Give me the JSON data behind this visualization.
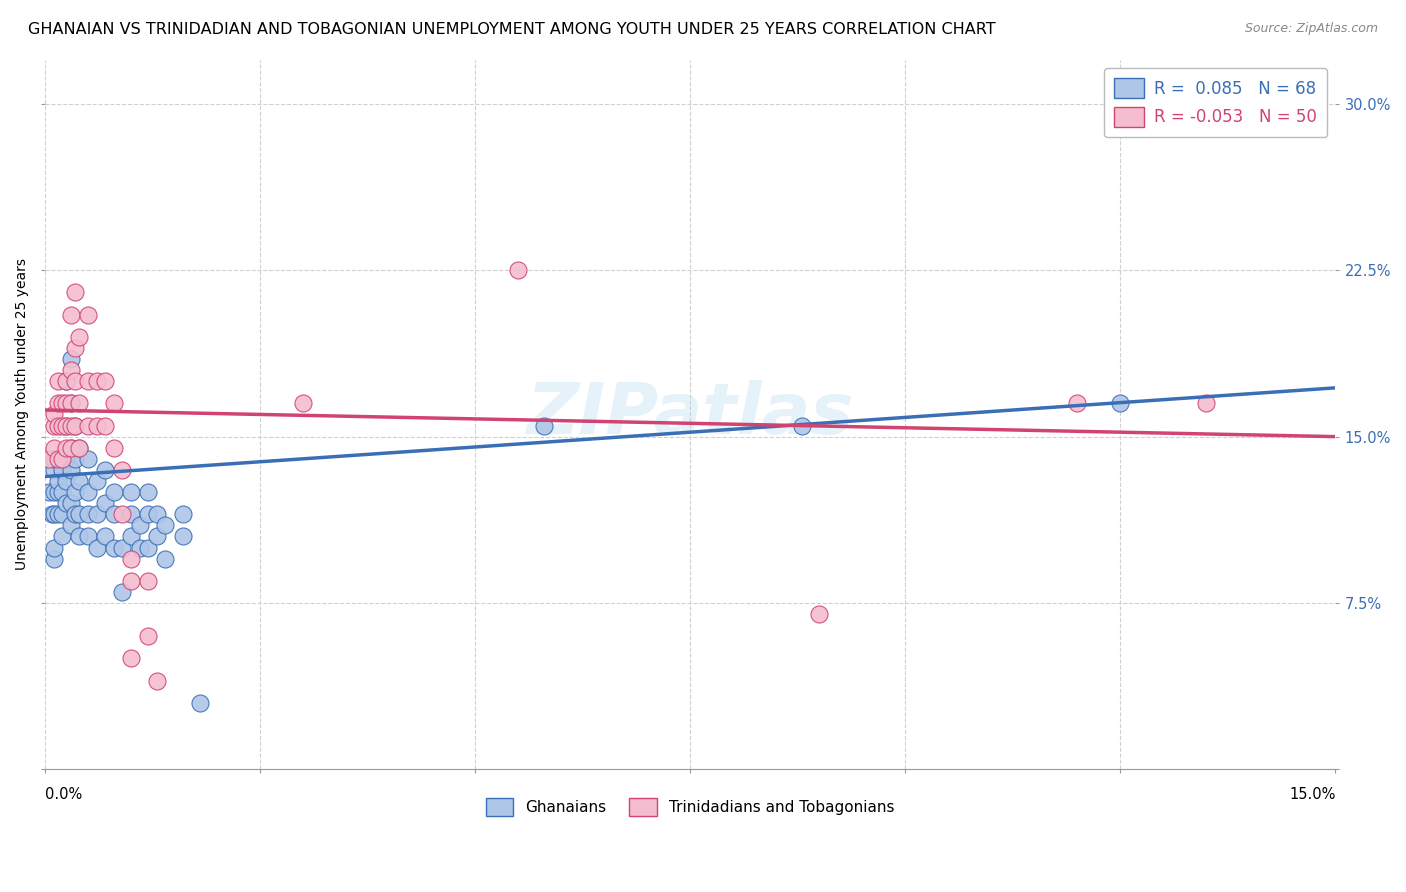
{
  "title": "GHANAIAN VS TRINIDADIAN AND TOBAGONIAN UNEMPLOYMENT AMONG YOUTH UNDER 25 YEARS CORRELATION CHART",
  "source": "Source: ZipAtlas.com",
  "ylabel": "Unemployment Among Youth under 25 years",
  "ytick_labels_right": [
    "",
    "7.5%",
    "15.0%",
    "22.5%",
    "30.0%"
  ],
  "yticks": [
    0.0,
    0.075,
    0.15,
    0.225,
    0.3
  ],
  "xlim": [
    0.0,
    0.15
  ],
  "ylim": [
    0.0,
    0.32
  ],
  "blue_R": 0.085,
  "blue_N": 68,
  "pink_R": -0.053,
  "pink_N": 50,
  "blue_color": "#aec6e8",
  "pink_color": "#f4bdd0",
  "blue_line_color": "#3b6fb5",
  "pink_line_color": "#d14472",
  "blue_trend_x": [
    0.0,
    0.15
  ],
  "blue_trend_y": [
    0.132,
    0.172
  ],
  "pink_trend_x": [
    0.0,
    0.15
  ],
  "pink_trend_y": [
    0.162,
    0.15
  ],
  "blue_scatter": [
    [
      0.0005,
      0.125
    ],
    [
      0.0008,
      0.115
    ],
    [
      0.001,
      0.095
    ],
    [
      0.001,
      0.1
    ],
    [
      0.001,
      0.115
    ],
    [
      0.001,
      0.125
    ],
    [
      0.001,
      0.135
    ],
    [
      0.001,
      0.14
    ],
    [
      0.0015,
      0.115
    ],
    [
      0.0015,
      0.125
    ],
    [
      0.0015,
      0.13
    ],
    [
      0.002,
      0.105
    ],
    [
      0.002,
      0.115
    ],
    [
      0.002,
      0.125
    ],
    [
      0.002,
      0.135
    ],
    [
      0.0025,
      0.12
    ],
    [
      0.0025,
      0.13
    ],
    [
      0.0025,
      0.14
    ],
    [
      0.0025,
      0.155
    ],
    [
      0.0025,
      0.175
    ],
    [
      0.003,
      0.11
    ],
    [
      0.003,
      0.12
    ],
    [
      0.003,
      0.135
    ],
    [
      0.003,
      0.145
    ],
    [
      0.003,
      0.165
    ],
    [
      0.003,
      0.185
    ],
    [
      0.0035,
      0.115
    ],
    [
      0.0035,
      0.125
    ],
    [
      0.0035,
      0.14
    ],
    [
      0.0035,
      0.155
    ],
    [
      0.004,
      0.105
    ],
    [
      0.004,
      0.115
    ],
    [
      0.004,
      0.13
    ],
    [
      0.004,
      0.145
    ],
    [
      0.005,
      0.105
    ],
    [
      0.005,
      0.115
    ],
    [
      0.005,
      0.125
    ],
    [
      0.005,
      0.14
    ],
    [
      0.006,
      0.1
    ],
    [
      0.006,
      0.115
    ],
    [
      0.006,
      0.13
    ],
    [
      0.007,
      0.105
    ],
    [
      0.007,
      0.12
    ],
    [
      0.007,
      0.135
    ],
    [
      0.008,
      0.1
    ],
    [
      0.008,
      0.115
    ],
    [
      0.008,
      0.125
    ],
    [
      0.009,
      0.08
    ],
    [
      0.009,
      0.1
    ],
    [
      0.01,
      0.105
    ],
    [
      0.01,
      0.115
    ],
    [
      0.01,
      0.125
    ],
    [
      0.011,
      0.1
    ],
    [
      0.011,
      0.11
    ],
    [
      0.012,
      0.1
    ],
    [
      0.012,
      0.115
    ],
    [
      0.012,
      0.125
    ],
    [
      0.013,
      0.105
    ],
    [
      0.013,
      0.115
    ],
    [
      0.014,
      0.095
    ],
    [
      0.014,
      0.11
    ],
    [
      0.016,
      0.105
    ],
    [
      0.016,
      0.115
    ],
    [
      0.018,
      0.03
    ],
    [
      0.058,
      0.155
    ],
    [
      0.088,
      0.155
    ],
    [
      0.125,
      0.165
    ]
  ],
  "pink_scatter": [
    [
      0.0005,
      0.14
    ],
    [
      0.001,
      0.145
    ],
    [
      0.001,
      0.155
    ],
    [
      0.001,
      0.16
    ],
    [
      0.0015,
      0.14
    ],
    [
      0.0015,
      0.155
    ],
    [
      0.0015,
      0.165
    ],
    [
      0.0015,
      0.175
    ],
    [
      0.002,
      0.14
    ],
    [
      0.002,
      0.155
    ],
    [
      0.002,
      0.165
    ],
    [
      0.0025,
      0.145
    ],
    [
      0.0025,
      0.155
    ],
    [
      0.0025,
      0.165
    ],
    [
      0.0025,
      0.175
    ],
    [
      0.003,
      0.145
    ],
    [
      0.003,
      0.155
    ],
    [
      0.003,
      0.165
    ],
    [
      0.003,
      0.18
    ],
    [
      0.003,
      0.205
    ],
    [
      0.0035,
      0.155
    ],
    [
      0.0035,
      0.175
    ],
    [
      0.0035,
      0.19
    ],
    [
      0.0035,
      0.215
    ],
    [
      0.004,
      0.145
    ],
    [
      0.004,
      0.165
    ],
    [
      0.004,
      0.195
    ],
    [
      0.005,
      0.155
    ],
    [
      0.005,
      0.175
    ],
    [
      0.005,
      0.205
    ],
    [
      0.006,
      0.155
    ],
    [
      0.006,
      0.175
    ],
    [
      0.007,
      0.155
    ],
    [
      0.007,
      0.175
    ],
    [
      0.008,
      0.145
    ],
    [
      0.008,
      0.165
    ],
    [
      0.009,
      0.115
    ],
    [
      0.009,
      0.135
    ],
    [
      0.01,
      0.085
    ],
    [
      0.01,
      0.095
    ],
    [
      0.01,
      0.05
    ],
    [
      0.012,
      0.085
    ],
    [
      0.012,
      0.06
    ],
    [
      0.013,
      0.04
    ],
    [
      0.03,
      0.165
    ],
    [
      0.055,
      0.225
    ],
    [
      0.09,
      0.07
    ],
    [
      0.12,
      0.165
    ],
    [
      0.135,
      0.165
    ]
  ],
  "background_color": "#ffffff",
  "grid_color": "#d0d0d0",
  "title_fontsize": 11.5,
  "axis_label_fontsize": 10,
  "tick_fontsize": 10.5
}
